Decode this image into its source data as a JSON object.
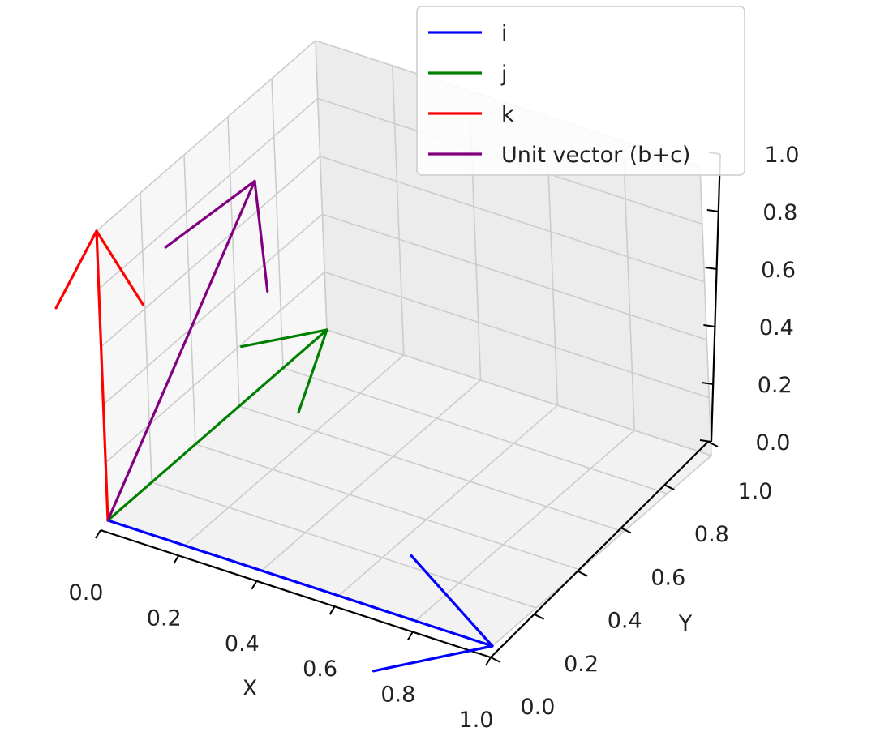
{
  "chart_data": {
    "type": "line",
    "subtype": "3d-quiver",
    "title": "",
    "xlabel": "X",
    "ylabel": "Y",
    "zlabel": "",
    "xlim": [
      0,
      1
    ],
    "ylim": [
      0,
      1
    ],
    "zlim": [
      0,
      1
    ],
    "grid": true,
    "legend_position": "top-right",
    "x_ticks": [
      "0.0",
      "0.2",
      "0.4",
      "0.6",
      "0.8",
      "1.0"
    ],
    "y_ticks": [
      "0.0",
      "0.2",
      "0.4",
      "0.6",
      "0.8",
      "1.0"
    ],
    "z_ticks": [
      "0.0",
      "0.2",
      "0.4",
      "0.6",
      "0.8",
      "1.0"
    ],
    "series": [
      {
        "name": "i",
        "color": "#0000ff",
        "origin": [
          0,
          0,
          0
        ],
        "vector": [
          1,
          0,
          0
        ]
      },
      {
        "name": "j",
        "color": "#008000",
        "origin": [
          0,
          0,
          0
        ],
        "vector": [
          0,
          1,
          0
        ]
      },
      {
        "name": "k",
        "color": "#ff0000",
        "origin": [
          0,
          0,
          0
        ],
        "vector": [
          0,
          0,
          1
        ]
      },
      {
        "name": "Unit vector (b+c)",
        "color": "#800080",
        "origin": [
          0,
          0,
          0
        ],
        "vector": [
          0,
          0.707,
          0.707
        ]
      }
    ]
  }
}
